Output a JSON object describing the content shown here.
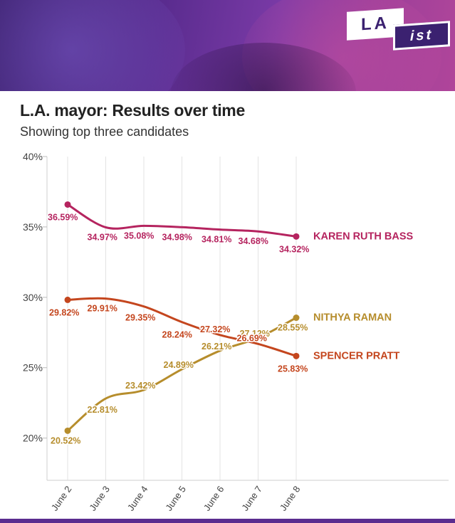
{
  "logo": {
    "part1": "LA",
    "part2": "ist"
  },
  "chart_data": {
    "type": "line",
    "title": "L.A. mayor: Results over time",
    "subtitle": "Showing top three candidates",
    "categories": [
      "June 2",
      "June 3",
      "June 4",
      "June 5",
      "June 6",
      "June 7",
      "June 8"
    ],
    "ylim": [
      17,
      40
    ],
    "yticks": [
      {
        "value": 40,
        "label": "40%"
      },
      {
        "value": 35,
        "label": "35%"
      },
      {
        "value": 30,
        "label": "30%"
      },
      {
        "value": 25,
        "label": "25%"
      },
      {
        "value": 20,
        "label": "20%"
      }
    ],
    "grid": "vertical",
    "series": [
      {
        "name": "KAREN RUTH BASS",
        "color": "#b5245f",
        "values": [
          36.59,
          34.97,
          35.08,
          34.98,
          34.81,
          34.68,
          34.32
        ],
        "labels": [
          "36.59%",
          "34.97%",
          "35.08%",
          "34.98%",
          "34.81%",
          "34.68%",
          "34.32%"
        ]
      },
      {
        "name": "NITHYA RAMAN",
        "color": "#b68d2c",
        "values": [
          20.52,
          22.81,
          23.42,
          24.89,
          26.21,
          27.12,
          28.55
        ],
        "labels": [
          "20.52%",
          "22.81%",
          "23.42%",
          "24.89%",
          "26.21%",
          "27.12%",
          "28.55%"
        ]
      },
      {
        "name": "SPENCER PRATT",
        "color": "#c4461e",
        "values": [
          29.82,
          29.91,
          29.35,
          28.24,
          27.32,
          26.69,
          25.83
        ],
        "labels": [
          "29.82%",
          "29.91%",
          "29.35%",
          "28.24%",
          "27.32%",
          "26.69%",
          "25.83%"
        ]
      }
    ]
  }
}
